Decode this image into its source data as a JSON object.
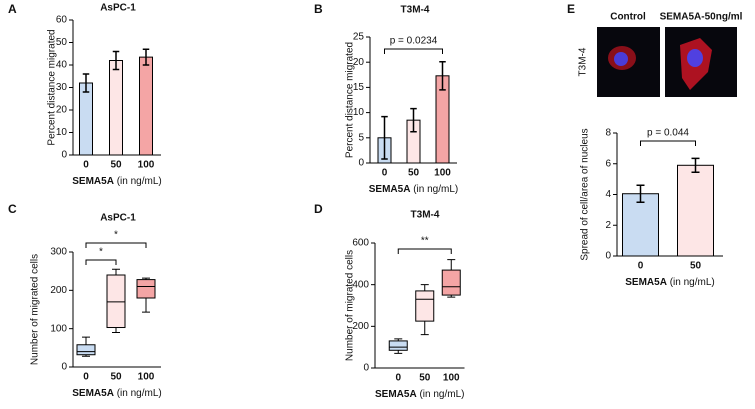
{
  "chart_data": [
    {
      "type": "bar",
      "panel": "A",
      "title": "AsPC-1",
      "ylabel": "Percent distance migrated",
      "xlabel": "SEMA5A",
      "xlabel_unit": "(in ng/mL)",
      "categories": [
        "0",
        "50",
        "100"
      ],
      "values": [
        32,
        42,
        43.5
      ],
      "errors": [
        4,
        4,
        3.5
      ],
      "colors": [
        "#c9dcf2",
        "#fde6e6",
        "#f4a5a5"
      ],
      "ylim": [
        0,
        60
      ],
      "yticks": [
        0,
        10,
        20,
        30,
        40,
        50,
        60
      ]
    },
    {
      "type": "bar",
      "panel": "B",
      "title": "T3M-4",
      "ylabel": "Percent distance migrated",
      "xlabel": "SEMA5A",
      "xlabel_unit": "(in ng/mL)",
      "categories": [
        "0",
        "50",
        "100"
      ],
      "values": [
        5,
        8.5,
        17.3
      ],
      "errors": [
        4.2,
        2.3,
        2.8
      ],
      "colors": [
        "#c9dcf2",
        "#fde6e6",
        "#f4a5a5"
      ],
      "ylim": [
        0,
        25
      ],
      "yticks": [
        0,
        5,
        10,
        15,
        20,
        25
      ],
      "annotations": [
        "p = 0.0234"
      ]
    },
    {
      "type": "box",
      "panel": "C",
      "title": "AsPC-1",
      "ylabel": "Number of migrated cells",
      "xlabel": "SEMA5A",
      "xlabel_unit": "(in ng/mL)",
      "categories": [
        "0",
        "50",
        "100"
      ],
      "boxes": [
        {
          "min": 28,
          "q1": 32,
          "median": 40,
          "q3": 58,
          "max": 78
        },
        {
          "min": 90,
          "q1": 103,
          "median": 170,
          "q3": 240,
          "max": 255
        },
        {
          "min": 143,
          "q1": 180,
          "median": 210,
          "q3": 228,
          "max": 232
        }
      ],
      "colors": [
        "#c9dcf2",
        "#fde6e6",
        "#f4a5a5"
      ],
      "ylim": [
        0,
        300
      ],
      "yticks": [
        0,
        100,
        200,
        300
      ],
      "annotations": [
        "*",
        "*"
      ]
    },
    {
      "type": "box",
      "panel": "D",
      "title": "T3M-4",
      "ylabel": "Number of migrated cells",
      "xlabel": "SEMA5A",
      "xlabel_unit": "(in ng/mL)",
      "categories": [
        "0",
        "50",
        "100"
      ],
      "boxes": [
        {
          "min": 70,
          "q1": 85,
          "median": 100,
          "q3": 130,
          "max": 140
        },
        {
          "min": 160,
          "q1": 225,
          "median": 330,
          "q3": 370,
          "max": 400
        },
        {
          "min": 340,
          "q1": 350,
          "median": 390,
          "q3": 470,
          "max": 520
        }
      ],
      "colors": [
        "#c9dcf2",
        "#fde6e6",
        "#f4a5a5"
      ],
      "ylim": [
        0,
        600
      ],
      "yticks": [
        0,
        200,
        400,
        600
      ],
      "annotations": [
        "**"
      ]
    },
    {
      "type": "bar",
      "panel": "E",
      "ylabel": "Spread of cell/area of nucleus",
      "xlabel": "SEMA5A",
      "xlabel_unit": "(in ng/mL)",
      "image_labels": [
        "Control",
        "SEMA5A-50ng/ml"
      ],
      "image_row_label": "T3M-4",
      "categories": [
        "0",
        "50"
      ],
      "values": [
        4.05,
        5.9
      ],
      "errors": [
        0.55,
        0.45
      ],
      "colors": [
        "#c9dcf2",
        "#fde6e6"
      ],
      "ylim": [
        0,
        8
      ],
      "yticks": [
        0,
        2,
        4,
        6,
        8
      ],
      "annotations": [
        "p = 0.044"
      ]
    }
  ]
}
